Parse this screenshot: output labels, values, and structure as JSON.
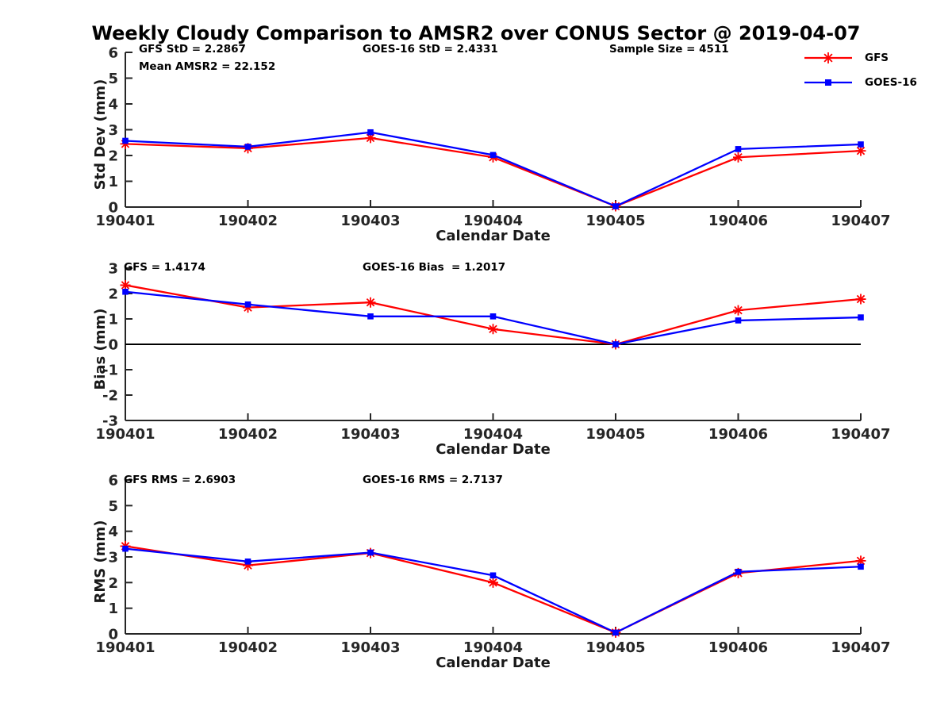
{
  "title": "Weekly Cloudy Comparison to AMSR2 over CONUS Sector @ 2019-04-07",
  "colors": {
    "gfs": "#ff0000",
    "goes16": "#0000ff",
    "axis": "#262626",
    "zero_line": "#000000"
  },
  "legend": {
    "entries": [
      "GFS",
      "GOES-16"
    ]
  },
  "chart_data": [
    {
      "type": "line",
      "title": "",
      "xlabel": "Calendar Date",
      "ylabel": "Std Dev (mm)",
      "categories": [
        "190401",
        "190402",
        "190403",
        "190404",
        "190405",
        "190406",
        "190407"
      ],
      "ylim": [
        0,
        6
      ],
      "yticks": [
        0,
        1,
        2,
        3,
        4,
        5,
        6
      ],
      "grid": false,
      "legend_position": "outside-upper-right",
      "zero_line": false,
      "annotations": [
        "GFS StD = 2.2867",
        "Mean AMSR2 = 22.152",
        "GOES-16 StD = 2.4331",
        "Sample Size = 4511"
      ],
      "series": [
        {
          "name": "GFS",
          "color": "#ff0000",
          "marker": "asterisk",
          "values": [
            2.45,
            2.28,
            2.68,
            1.93,
            0.03,
            1.93,
            2.18
          ]
        },
        {
          "name": "GOES-16",
          "color": "#0000ff",
          "marker": "square",
          "values": [
            2.57,
            2.34,
            2.9,
            2.02,
            0.03,
            2.25,
            2.43
          ]
        }
      ]
    },
    {
      "type": "line",
      "title": "",
      "xlabel": "Calendar Date",
      "ylabel": "Bias (mm)",
      "categories": [
        "190401",
        "190402",
        "190403",
        "190404",
        "190405",
        "190406",
        "190407"
      ],
      "ylim": [
        -3,
        3
      ],
      "yticks": [
        -3,
        -2,
        -1,
        0,
        1,
        2,
        3
      ],
      "grid": false,
      "zero_line": true,
      "annotations": [
        "GFS = 1.4174",
        "GOES-16 Bias  = 1.2017"
      ],
      "series": [
        {
          "name": "GFS",
          "color": "#ff0000",
          "marker": "asterisk",
          "values": [
            2.33,
            1.45,
            1.65,
            0.6,
            0.0,
            1.34,
            1.78
          ]
        },
        {
          "name": "GOES-16",
          "color": "#0000ff",
          "marker": "square",
          "values": [
            2.07,
            1.57,
            1.1,
            1.1,
            0.0,
            0.94,
            1.06
          ]
        }
      ]
    },
    {
      "type": "line",
      "title": "",
      "xlabel": "Calendar Date",
      "ylabel": "RMS (mm)",
      "categories": [
        "190401",
        "190402",
        "190403",
        "190404",
        "190405",
        "190406",
        "190407"
      ],
      "ylim": [
        0,
        6
      ],
      "yticks": [
        0,
        1,
        2,
        3,
        4,
        5,
        6
      ],
      "grid": false,
      "zero_line": false,
      "annotations": [
        "GFS RMS = 2.6903",
        "GOES-16 RMS = 2.7137"
      ],
      "series": [
        {
          "name": "GFS",
          "color": "#ff0000",
          "marker": "asterisk",
          "values": [
            3.42,
            2.67,
            3.15,
            2.0,
            0.05,
            2.37,
            2.85
          ]
        },
        {
          "name": "GOES-16",
          "color": "#0000ff",
          "marker": "square",
          "values": [
            3.32,
            2.82,
            3.17,
            2.28,
            0.05,
            2.42,
            2.62
          ]
        }
      ]
    }
  ]
}
